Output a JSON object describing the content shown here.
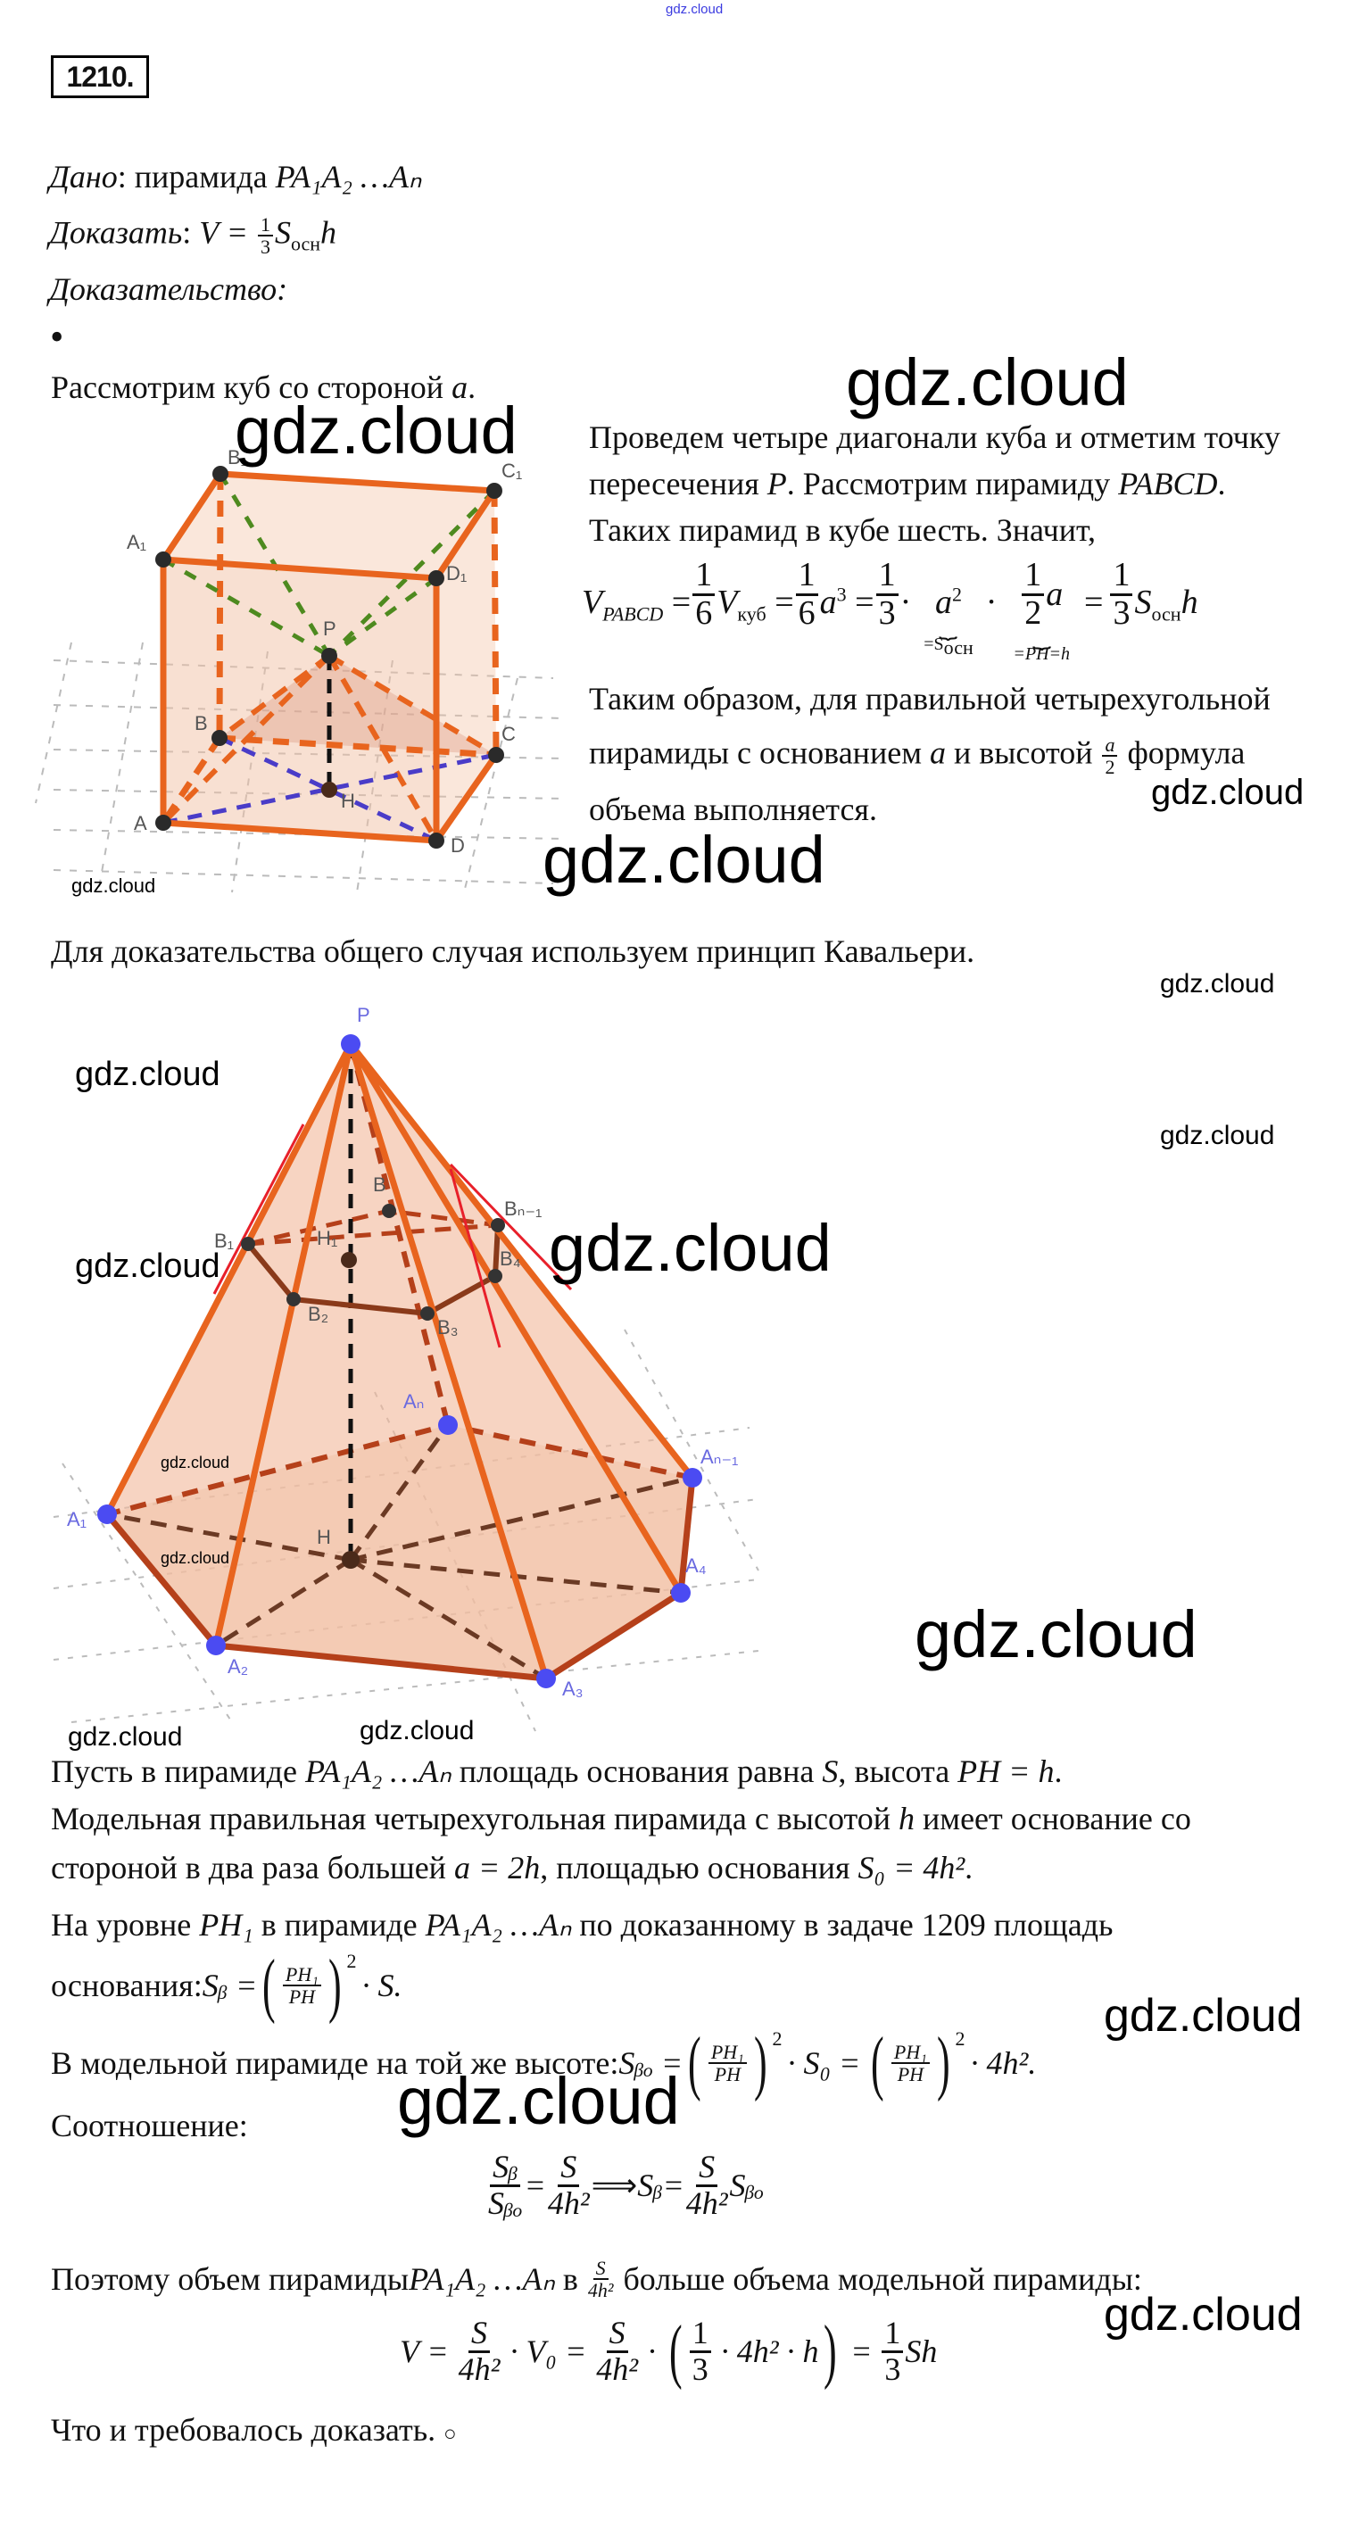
{
  "watermark": "gdz.cloud",
  "problem_number": "1210.",
  "given": {
    "label": "Дано",
    "colon": ": пирамида ",
    "expr": "PA₁A₂ …Aₙ"
  },
  "prove": {
    "label": "Доказать",
    "colon": ": ",
    "lhs": "V = ",
    "num": "1",
    "den": "3",
    "s": "S",
    "s_sub": "осн",
    "h": "h"
  },
  "proof_label": "Доказательство:",
  "bullet": "•",
  "cube_intro": {
    "text": "Рассмотрим куб со стороной ",
    "var": "a",
    "end": "."
  },
  "right": {
    "l1": "Проведем четыре диагонали куба и отметим точку",
    "l2a": "пересечения ",
    "l2b": "P",
    "l2c": ". Рассмотрим пирамиду ",
    "l2d": "PABCD",
    "l2e": ".",
    "l3": "Таких пирамид в кубе шесть. Значит,",
    "formula": {
      "v": "V",
      "v_sub": "PABCD",
      "eq": " = ",
      "one": "1",
      "six": "6",
      "vk": "V",
      "vk_sub": "куб",
      "a": "a",
      "cube": "3",
      "three": "3",
      "dot": "·",
      "a2": "a",
      "sq": "2",
      "brace1": "=S",
      "brace1_sub": "осн",
      "two": "2",
      "brace2": "=PH=h",
      "s": "S",
      "s_sub": "осн",
      "h": "h"
    },
    "l4": "Таким образом, для правильной четырехугольной",
    "l5a": "пирамиды с основанием ",
    "l5b": "a",
    "l5c": " и высотой ",
    "l5num": "a",
    "l5den": "2",
    "l5d": " формула",
    "l6": "объема выполняется."
  },
  "cavalieri": "Для доказательства общего случая используем принцип Кавальери.",
  "cube_labels": {
    "B1": "B₁",
    "C1": "C₁",
    "A1": "A₁",
    "D1": "D₁",
    "P": "P",
    "B": "B",
    "C": "C",
    "H": "H",
    "A": "A",
    "D": "D"
  },
  "pyr_labels": {
    "P": "P",
    "B": "B",
    "Bn1": "Bₙ₋₁",
    "B1": "B₁",
    "H1": "H₁",
    "B2": "B₂",
    "B3": "B₃",
    "B4": "B₄",
    "An": "Aₙ",
    "An1": "Aₙ₋₁",
    "A1": "A₁",
    "A2": "A₂",
    "A3": "A₃",
    "A4": "A₄",
    "H": "H"
  },
  "text": {
    "p1a": "Пусть в пирамиде ",
    "p1b": "PA₁A₂ …Aₙ",
    "p1c": " площадь основания равна ",
    "p1d": "S",
    "p1e": ", высота ",
    "p1f": "PH = h",
    "p1g": ".",
    "p2a": "Модельная правильная четырехугольная пирамида с высотой ",
    "p2b": "h",
    "p2c": " имеет основание со",
    "p3a": "стороной в два раза большей ",
    "p3b": "a = 2h",
    "p3c": ", площадью основания ",
    "p3d": "S₀ = 4h²",
    "p3e": ".",
    "p4a": "На уровне ",
    "p4b": "PH₁",
    "p4c": " в пирамиде ",
    "p4d": "PA₁A₂ …Aₙ",
    "p4e": " по доказанному в задаче 1209 площадь",
    "p5a": "основания: ",
    "p5b": "Sᵦ = ",
    "ph1": "PH₁",
    "ph": "PH",
    "p5c": "· S.",
    "p6a": "В модельной пирамиде на той же высоте: ",
    "p6b": "Sᵦₒ = ",
    "p6c": "· S₀ = ",
    "p6d": "· 4h².",
    "sq": "2",
    "p7": "Соотношение:",
    "f1": {
      "sb": "Sᵦ",
      "sbo": "Sᵦₒ",
      "eq": " = ",
      "s": "S",
      "den": "4h²",
      "imp": " ⟹ ",
      "sb2": "Sᵦ"
    },
    "p8a": "Поэтому объем пирамиды ",
    "p8b": "PA₁A₂ …Aₙ",
    "p8c": " в ",
    "p8num": "S",
    "p8den": "4h²",
    "p8d": " больше объема модельной пирамиды:",
    "f2": {
      "v": "V = ",
      "s": "S",
      "den": "4h²",
      "v0": " · V₀ = ",
      "dot": " · ",
      "one": "1",
      "three": "3",
      "mid": " · 4h² · h",
      "eq": " = ",
      "sh": "Sh"
    },
    "p9": "Что и требовалось доказать. ",
    "qed": "○"
  },
  "colors": {
    "edge": "#e8641e",
    "dark_edge": "#b5401a",
    "face": "#f2c2a6",
    "point_blue": "#4b4bf2",
    "diag_green": "#4e8a1f",
    "diag_blue": "#4a3cc8",
    "red": "#e8202a",
    "watermark_top": "#3a3ae0"
  }
}
